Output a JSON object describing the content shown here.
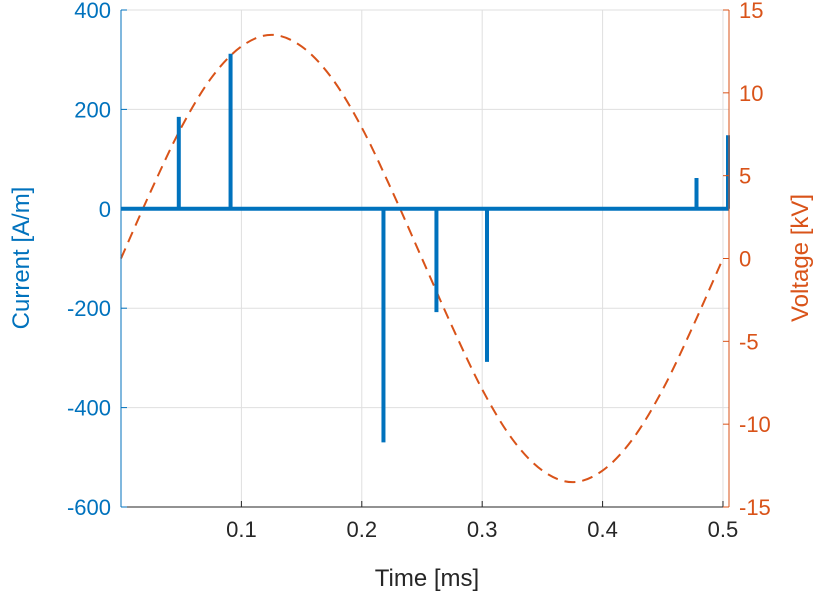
{
  "chart_data": {
    "type": "line",
    "xlabel": "Time [ms]",
    "ylabel_left": "Current [A/m]",
    "ylabel_right": "Voltage [kV]",
    "xlim": [
      0,
      0.505
    ],
    "ylim_left": [
      -600,
      400
    ],
    "ylim_right": [
      -15,
      15
    ],
    "x_ticks": [
      "0.1",
      "0.2",
      "0.3",
      "0.4",
      "0.5"
    ],
    "x_tick_values": [
      0.1,
      0.2,
      0.3,
      0.4,
      0.5
    ],
    "y_left_ticks": [
      "400",
      "200",
      "0",
      "-200",
      "-400",
      "-600"
    ],
    "y_left_tick_values": [
      400,
      200,
      0,
      -200,
      -400,
      -600
    ],
    "y_right_ticks": [
      "15",
      "10",
      "5",
      "0",
      "-5",
      "-10",
      "-15"
    ],
    "y_right_tick_values": [
      15,
      10,
      5,
      0,
      -5,
      -10,
      -15
    ],
    "grid": true,
    "colors": {
      "current": "#0072BD",
      "voltage": "#D95319",
      "grid": "#DFDFDF",
      "axis": "#262626"
    },
    "series": [
      {
        "axis": "left",
        "style": "solid",
        "pulses": [
          {
            "x": 0.048,
            "y": 185
          },
          {
            "x": 0.091,
            "y": 312
          },
          {
            "x": 0.218,
            "y": -470
          },
          {
            "x": 0.262,
            "y": -208
          },
          {
            "x": 0.304,
            "y": -308
          },
          {
            "x": 0.478,
            "y": 62
          },
          {
            "x": 0.507,
            "y": 148
          }
        ]
      },
      {
        "axis": "right",
        "style": "dashed",
        "x": [
          0,
          0.025,
          0.05,
          0.075,
          0.1,
          0.125,
          0.15,
          0.175,
          0.2,
          0.225,
          0.25,
          0.275,
          0.3,
          0.325,
          0.35,
          0.375,
          0.4,
          0.425,
          0.45,
          0.475,
          0.5
        ],
        "y": [
          0,
          4.1,
          7.9,
          10.9,
          12.8,
          13.5,
          12.8,
          10.9,
          7.9,
          4.1,
          0,
          -4.1,
          -7.9,
          -10.9,
          -12.8,
          -13.5,
          -12.8,
          -10.9,
          -7.9,
          -4.1,
          0
        ]
      }
    ]
  }
}
